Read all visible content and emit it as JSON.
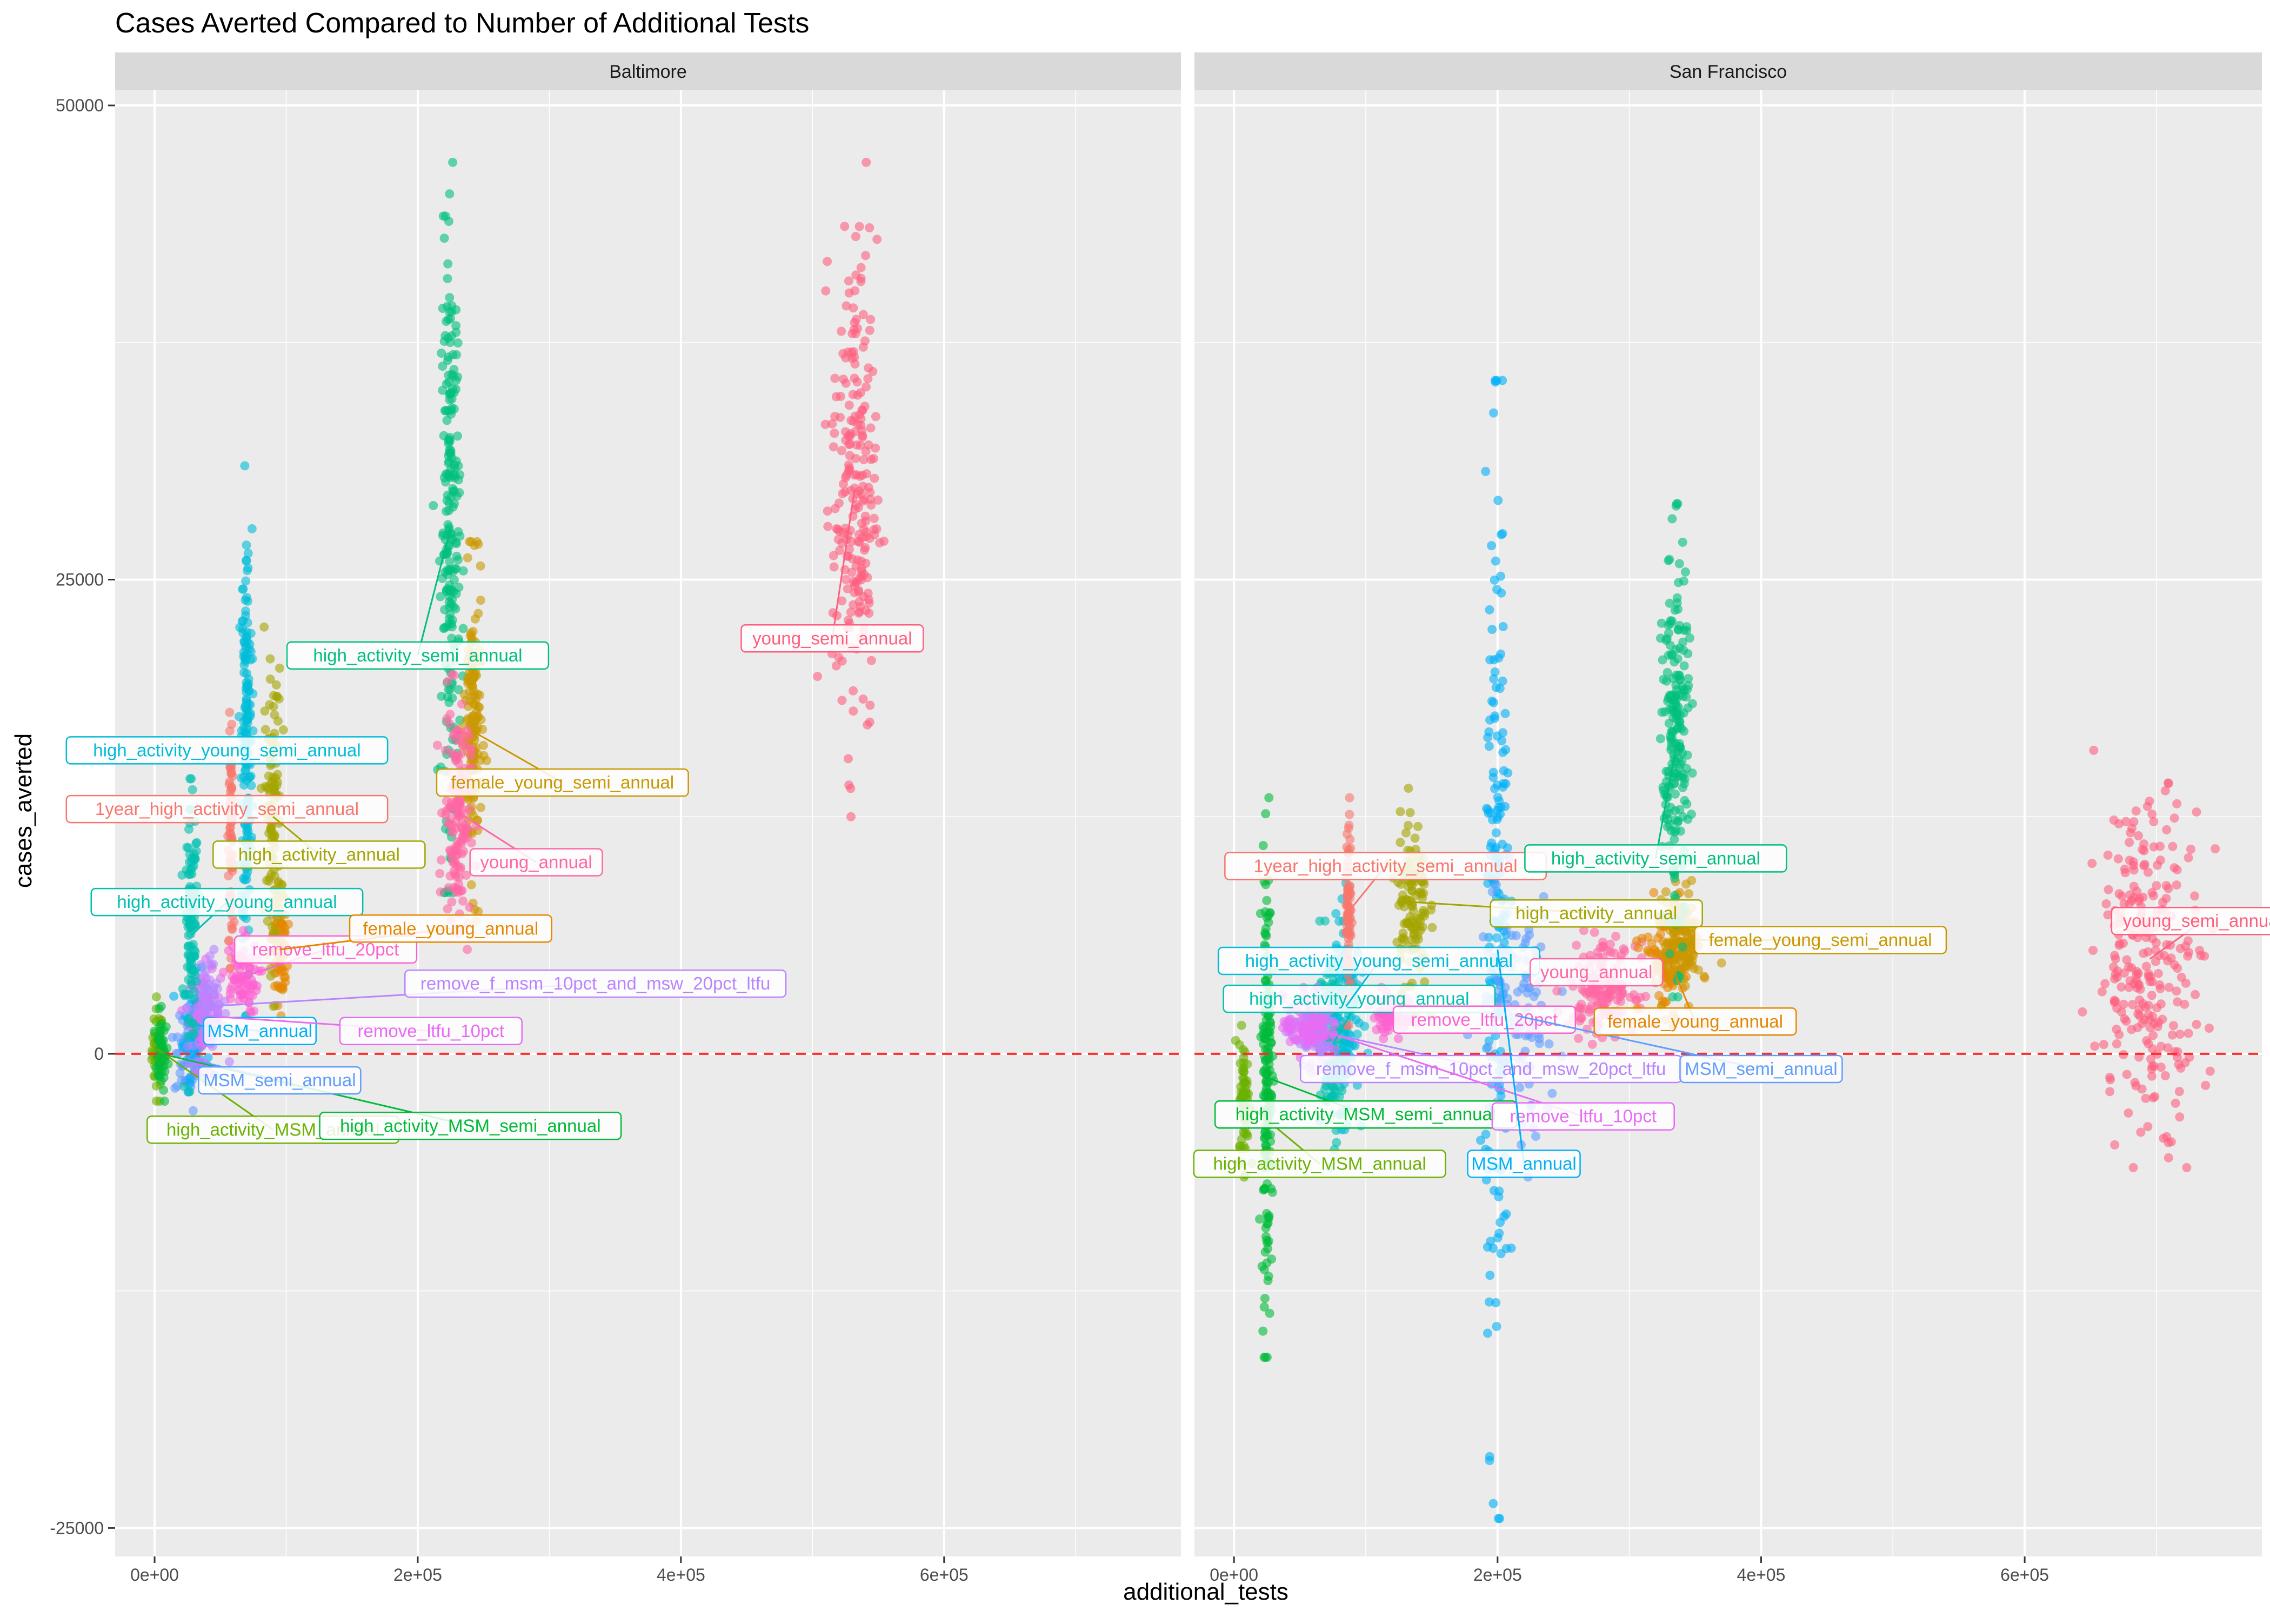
{
  "chart_data": {
    "type": "scatter",
    "title": "Cases Averted Compared to Number of Additional Tests",
    "xlabel": "additional_tests",
    "ylabel": "cases_averted",
    "xlim": [
      -30000,
      780000
    ],
    "ylim": [
      -26500,
      50800
    ],
    "x_ticks": [
      0,
      200000,
      400000,
      600000
    ],
    "x_tick_labels": [
      "0e+00",
      "2e+05",
      "4e+05",
      "6e+05"
    ],
    "y_ticks": [
      -25000,
      0,
      25000,
      50000
    ],
    "y_tick_labels": [
      "-25000",
      "0",
      "25000",
      "50000"
    ],
    "reference_line_y": 0,
    "grid": true,
    "legend": "none (direct labels)",
    "series_colors": {
      "1year_high_activity_semi_annual": "#F8766D",
      "female_young_annual": "#E58700",
      "female_young_semi_annual": "#C99800",
      "high_activity_annual": "#A3A500",
      "high_activity_MSM_annual": "#6BB100",
      "high_activity_MSM_semi_annual": "#00BA38",
      "high_activity_semi_annual": "#00BF7D",
      "high_activity_young_annual": "#00C0AF",
      "high_activity_young_semi_annual": "#00BCD8",
      "MSM_annual": "#00B0F6",
      "MSM_semi_annual": "#619CFF",
      "remove_f_msm_10pct_and_msw_20pct_ltfu": "#B983FF",
      "remove_ltfu_10pct": "#E76BF3",
      "remove_ltfu_20pct": "#FD61D1",
      "young_annual": "#FF67A4",
      "young_semi_annual": "#FF5F7E"
    },
    "panels": [
      {
        "name": "Baltimore",
        "series": [
          {
            "name": "high_activity_MSM_annual",
            "x": 2000,
            "sx": 4000,
            "ymin": -2500,
            "ymax": 3000,
            "n": 45,
            "lbl_x": 90000,
            "lbl_y": -4000
          },
          {
            "name": "high_activity_MSM_semi_annual",
            "x": 5000,
            "sx": 5000,
            "ymin": -2500,
            "ymax": 2500,
            "n": 45,
            "lbl_x": 240000,
            "lbl_y": -3800
          },
          {
            "name": "MSM_semi_annual",
            "x": 25000,
            "sx": 10000,
            "ymin": -3000,
            "ymax": 2500,
            "n": 60,
            "lbl_x": 95000,
            "lbl_y": -1400
          },
          {
            "name": "MSM_annual",
            "x": 32000,
            "sx": 10000,
            "ymin": -2000,
            "ymax": 5000,
            "n": 80,
            "lbl_x": 80000,
            "lbl_y": 1200
          },
          {
            "name": "remove_ltfu_10pct",
            "x": 38000,
            "sx": 12000,
            "ymin": -1000,
            "ymax": 5000,
            "n": 70,
            "lbl_x": 210000,
            "lbl_y": 1200
          },
          {
            "name": "remove_f_msm_10pct_and_msw_20pct_ltfu",
            "x": 40000,
            "sx": 15000,
            "ymin": -500,
            "ymax": 5500,
            "n": 70,
            "lbl_x": 335000,
            "lbl_y": 3700
          },
          {
            "name": "high_activity_young_annual",
            "x": 28000,
            "sx": 5000,
            "ymin": -2000,
            "ymax": 14500,
            "n": 110,
            "lbl_x": 55000,
            "lbl_y": 8000
          },
          {
            "name": "1year_high_activity_semi_annual",
            "x": 58000,
            "sx": 2000,
            "ymin": 4500,
            "ymax": 18000,
            "n": 80,
            "lbl_x": 55000,
            "lbl_y": 12900
          },
          {
            "name": "high_activity_young_semi_annual",
            "x": 70000,
            "sx": 4000,
            "ymin": 2000,
            "ymax": 31000,
            "n": 170,
            "lbl_x": 55000,
            "lbl_y": 16000
          },
          {
            "name": "remove_ltfu_20pct",
            "x": 65000,
            "sx": 14000,
            "ymin": 1500,
            "ymax": 6500,
            "n": 70,
            "lbl_x": 130000,
            "lbl_y": 5500
          },
          {
            "name": "female_young_annual",
            "x": 95000,
            "sx": 6000,
            "ymin": 2000,
            "ymax": 9000,
            "n": 80,
            "lbl_x": 225000,
            "lbl_y": 6600
          },
          {
            "name": "high_activity_annual",
            "x": 90000,
            "sx": 6000,
            "ymin": 2500,
            "ymax": 22500,
            "n": 120,
            "lbl_x": 125000,
            "lbl_y": 10500
          },
          {
            "name": "high_activity_semi_annual",
            "x": 225000,
            "sx": 7000,
            "ymin": 8500,
            "ymax": 47000,
            "n": 220,
            "lbl_x": 200000,
            "lbl_y": 21000
          },
          {
            "name": "female_young_semi_annual",
            "x": 242000,
            "sx": 7000,
            "ymin": 7000,
            "ymax": 27000,
            "n": 160,
            "lbl_x": 310000,
            "lbl_y": 14300
          },
          {
            "name": "young_annual",
            "x": 230000,
            "sx": 10000,
            "ymin": 5500,
            "ymax": 20000,
            "n": 160,
            "lbl_x": 290000,
            "lbl_y": 10100
          },
          {
            "name": "young_semi_annual",
            "x": 532000,
            "sx": 17000,
            "ymin": 12500,
            "ymax": 47000,
            "n": 230,
            "lbl_x": 515000,
            "lbl_y": 21900
          }
        ]
      },
      {
        "name": "San Francisco",
        "series": [
          {
            "name": "high_activity_MSM_annual",
            "x": 8000,
            "sx": 4000,
            "ymin": -6500,
            "ymax": 1500,
            "n": 70,
            "lbl_x": 65000,
            "lbl_y": -5800
          },
          {
            "name": "high_activity_MSM_semi_annual",
            "x": 25000,
            "sx": 4000,
            "ymin": -16000,
            "ymax": 13500,
            "n": 170,
            "lbl_x": 100000,
            "lbl_y": -3200
          },
          {
            "name": "high_activity_young_annual",
            "x": 75000,
            "sx": 10000,
            "ymin": -6000,
            "ymax": 7000,
            "n": 130,
            "lbl_x": 95000,
            "lbl_y": 2900
          },
          {
            "name": "high_activity_young_semi_annual",
            "x": 85000,
            "sx": 10000,
            "ymin": -4000,
            "ymax": 9000,
            "n": 110,
            "lbl_x": 110000,
            "lbl_y": 4900
          },
          {
            "name": "remove_f_msm_10pct_and_msw_20pct_ltfu",
            "x": 60000,
            "sx": 18000,
            "ymin": -1000,
            "ymax": 3500,
            "n": 90,
            "lbl_x": 195000,
            "lbl_y": -800
          },
          {
            "name": "remove_ltfu_10pct",
            "x": 55000,
            "sx": 18000,
            "ymin": -500,
            "ymax": 3500,
            "n": 80,
            "lbl_x": 265000,
            "lbl_y": -3300
          },
          {
            "name": "1year_high_activity_semi_annual",
            "x": 87000,
            "sx": 2000,
            "ymin": 1500,
            "ymax": 13500,
            "n": 80,
            "lbl_x": 115000,
            "lbl_y": 9900
          },
          {
            "name": "remove_ltfu_20pct",
            "x": 120000,
            "sx": 15000,
            "ymin": 800,
            "ymax": 3500,
            "n": 80,
            "lbl_x": 190000,
            "lbl_y": 1800
          },
          {
            "name": "high_activity_annual",
            "x": 135000,
            "sx": 12000,
            "ymin": 2000,
            "ymax": 14000,
            "n": 130,
            "lbl_x": 275000,
            "lbl_y": 7400
          },
          {
            "name": "MSM_annual",
            "x": 200000,
            "sx": 9000,
            "ymin": -24500,
            "ymax": 35500,
            "n": 190,
            "lbl_x": 220000,
            "lbl_y": -5800
          },
          {
            "name": "MSM_semi_annual",
            "x": 215000,
            "sx": 30000,
            "ymin": -6500,
            "ymax": 10500,
            "n": 110,
            "lbl_x": 400000,
            "lbl_y": -800
          },
          {
            "name": "young_annual",
            "x": 280000,
            "sx": 25000,
            "ymin": 500,
            "ymax": 6500,
            "n": 150,
            "lbl_x": 275000,
            "lbl_y": 4300
          },
          {
            "name": "female_young_annual",
            "x": 330000,
            "sx": 20000,
            "ymin": 1500,
            "ymax": 8500,
            "n": 120,
            "lbl_x": 350000,
            "lbl_y": 1700
          },
          {
            "name": "female_young_semi_annual",
            "x": 340000,
            "sx": 14000,
            "ymin": 2500,
            "ymax": 9500,
            "n": 120,
            "lbl_x": 445000,
            "lbl_y": 6000
          },
          {
            "name": "high_activity_semi_annual",
            "x": 335000,
            "sx": 10000,
            "ymin": 3000,
            "ymax": 29000,
            "n": 210,
            "lbl_x": 320000,
            "lbl_y": 10300
          },
          {
            "name": "young_semi_annual",
            "x": 695000,
            "sx": 40000,
            "ymin": -6000,
            "ymax": 16000,
            "n": 260,
            "lbl_x": 735000,
            "lbl_y": 7000
          }
        ]
      }
    ]
  }
}
